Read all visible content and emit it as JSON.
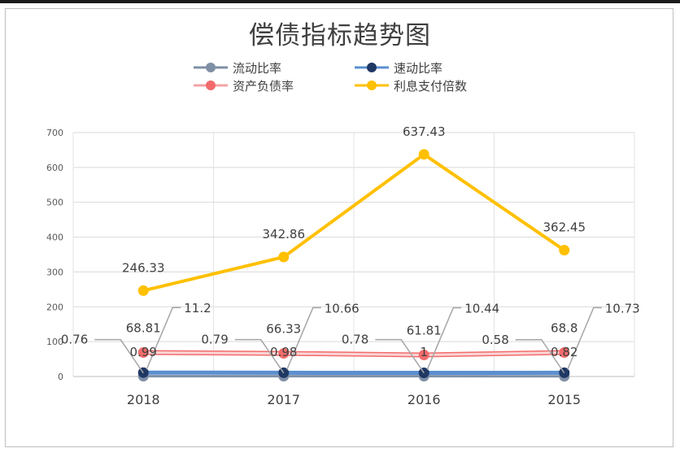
{
  "chart_data": {
    "type": "line",
    "title": "偿债指标趋势图",
    "categories": [
      "2018",
      "2017",
      "2016",
      "2015"
    ],
    "ylim": [
      0,
      700
    ],
    "yticks": [
      0,
      100,
      200,
      300,
      400,
      500,
      600,
      700
    ],
    "grid": true,
    "legend_position": "top",
    "series": [
      {
        "name": "流动比率",
        "values": [
          0.76,
          0.79,
          0.78,
          0.58
        ],
        "labels": [
          "0.76",
          "0.79",
          "0.78",
          "0.58"
        ],
        "color": "#7f8fa6",
        "marker_color": "#7f8fa6"
      },
      {
        "name": "速动比率",
        "values": [
          11.2,
          10.66,
          10.44,
          10.73
        ],
        "labels": [
          "11.2",
          "10.66",
          "10.44",
          "10.73"
        ],
        "color": "#5b8fcf",
        "marker_color": "#1f3864"
      },
      {
        "name": "资产负债率",
        "values": [
          68.81,
          66.33,
          61.81,
          68.8
        ],
        "labels": [
          "68.81",
          "66.33",
          "61.81",
          "68.8"
        ],
        "color": "#f4a3a3",
        "marker_color": "#f26b6b"
      },
      {
        "name": "利息支付倍数",
        "values": [
          246.33,
          342.86,
          637.43,
          362.45
        ],
        "labels": [
          "246.33",
          "342.86",
          "637.43",
          "362.45"
        ],
        "color": "#ffc000",
        "marker_color": "#ffc000"
      }
    ],
    "extra_labels": [
      "0.99",
      "0.98",
      "1",
      "0.82"
    ]
  }
}
